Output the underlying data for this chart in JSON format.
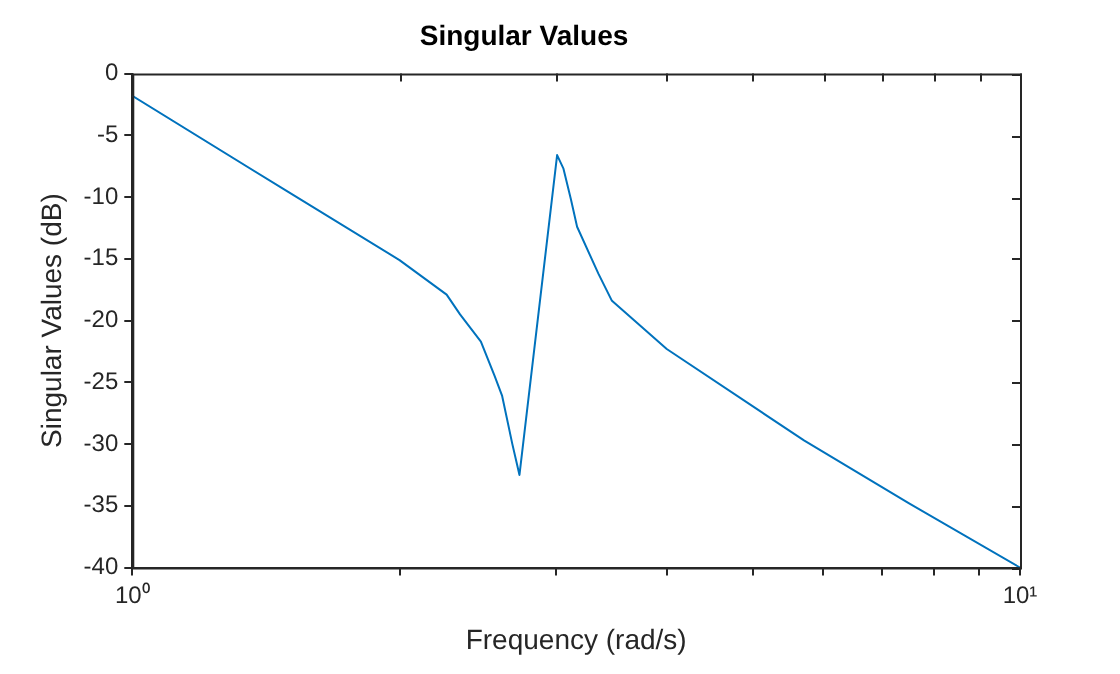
{
  "chart_data": {
    "type": "line",
    "title": "Singular Values",
    "xlabel": "Frequency (rad/s)",
    "ylabel": "Singular Values (dB)",
    "log": "x",
    "grid": false,
    "legend": false,
    "marker": "none",
    "line_style": "solid",
    "xlim": [
      1,
      10
    ],
    "xticks": [
      {
        "value": 1,
        "label": "10⁰"
      },
      {
        "value": 2,
        "label": null
      },
      {
        "value": 3,
        "label": null
      },
      {
        "value": 4,
        "label": null
      },
      {
        "value": 5,
        "label": null
      },
      {
        "value": 6,
        "label": null
      },
      {
        "value": 7,
        "label": null
      },
      {
        "value": 8,
        "label": null
      },
      {
        "value": 9,
        "label": null
      },
      {
        "value": 10,
        "label": "10¹"
      }
    ],
    "ylim": [
      -40,
      0
    ],
    "yticks": [
      -40,
      -35,
      -30,
      -25,
      -20,
      -15,
      -10,
      -5,
      0
    ],
    "series": [
      {
        "color": "#0072bd",
        "x": [
          1,
          1.5,
          2,
          2.26,
          2.34,
          2.47,
          2.56,
          2.61,
          2.68,
          2.73,
          3.01,
          3.06,
          3.12,
          3.17,
          3.35,
          3.47,
          4,
          5.71,
          7.5,
          10
        ],
        "values": [
          -1.8,
          -9.6,
          -15.1,
          -17.9,
          -19.5,
          -21.7,
          -24.5,
          -26.1,
          -30,
          -32.5,
          -6.6,
          -7.7,
          -10.2,
          -12.4,
          -16.2,
          -18.4,
          -22.3,
          -29.7,
          -34.8,
          -40
        ]
      }
    ]
  }
}
